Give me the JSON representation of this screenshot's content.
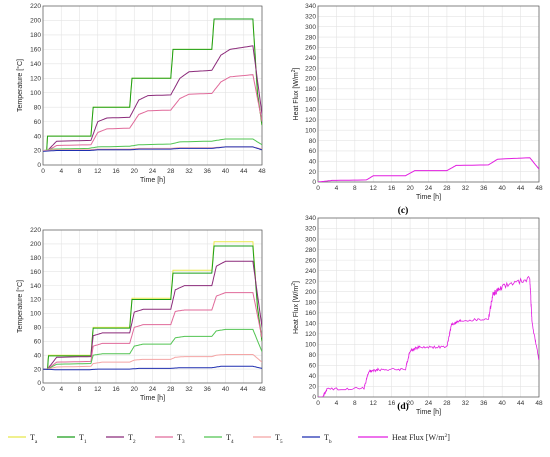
{
  "panel_labels": [
    "(c)",
    "(d)"
  ],
  "chart_data": [
    {
      "type": "line",
      "id": "c-left",
      "xlabel": "Time [h]",
      "ylabel": "Temperature [°C]",
      "xlim": [
        0,
        48
      ],
      "ylim": [
        0,
        220
      ],
      "xticks": [
        0,
        4,
        8,
        12,
        16,
        20,
        24,
        28,
        32,
        36,
        40,
        44,
        48
      ],
      "yticks": [
        0,
        20,
        40,
        60,
        80,
        100,
        120,
        140,
        160,
        180,
        200,
        220
      ],
      "grid": true,
      "series": [
        {
          "name": "Ta",
          "color": "#e8e84a",
          "x": [
            0,
            0.8,
            1,
            10.5,
            11,
            19,
            19.5,
            28,
            28.5,
            37,
            37.5,
            46,
            47,
            48
          ],
          "y": [
            20,
            20,
            40,
            40,
            80,
            80,
            120,
            120,
            160,
            160,
            202,
            202,
            100,
            55
          ]
        },
        {
          "name": "T1",
          "color": "#1a9e1a",
          "x": [
            0,
            0.8,
            1,
            10.5,
            11,
            19,
            19.5,
            28,
            28.5,
            37,
            37.5,
            46,
            47,
            48
          ],
          "y": [
            20,
            20,
            40,
            40,
            80,
            80,
            120,
            120,
            160,
            160,
            202,
            202,
            100,
            55
          ]
        },
        {
          "name": "T2",
          "color": "#8b2a7a",
          "x": [
            0,
            1,
            3,
            10.5,
            12,
            14,
            19,
            21,
            23,
            28,
            30,
            32,
            37,
            39,
            41,
            46,
            48
          ],
          "y": [
            20,
            20,
            33,
            34,
            60,
            65,
            66,
            90,
            96,
            97,
            120,
            129,
            131,
            152,
            160,
            165,
            70
          ]
        },
        {
          "name": "T3",
          "color": "#e06a9a",
          "x": [
            0,
            1,
            3,
            10.5,
            12,
            14,
            19,
            21,
            23,
            28,
            30,
            32,
            37,
            39,
            41,
            46,
            48
          ],
          "y": [
            20,
            20,
            27,
            28,
            45,
            50,
            51,
            70,
            75,
            76,
            92,
            98,
            99,
            115,
            122,
            125,
            60
          ]
        },
        {
          "name": "T4",
          "color": "#52c452",
          "x": [
            0,
            2,
            10,
            12,
            19,
            21,
            28,
            30,
            37,
            40,
            46,
            48
          ],
          "y": [
            20,
            22,
            23,
            25,
            26,
            28,
            29,
            32,
            33,
            36,
            36,
            28
          ]
        },
        {
          "name": "T5",
          "color": "#f4a5a5",
          "x": [
            0,
            2,
            10,
            12,
            19,
            21,
            28,
            30,
            37,
            40,
            46,
            48
          ],
          "y": [
            20,
            21,
            21,
            22,
            22,
            23,
            23,
            24,
            24,
            25,
            25,
            22
          ]
        },
        {
          "name": "Tb",
          "color": "#1f2fb0",
          "x": [
            0,
            3,
            10,
            12,
            19,
            21,
            28,
            30,
            37,
            40,
            46,
            48
          ],
          "y": [
            19,
            20,
            20,
            21,
            21,
            22,
            22,
            23,
            23,
            25,
            25,
            21
          ]
        }
      ]
    },
    {
      "type": "line",
      "id": "c-right",
      "xlabel": "Time [h]",
      "ylabel": "Heat Flux [W/m2]",
      "xlim": [
        0,
        48
      ],
      "ylim": [
        0,
        340
      ],
      "xticks": [
        0,
        4,
        8,
        12,
        16,
        20,
        24,
        28,
        32,
        36,
        40,
        44,
        48
      ],
      "yticks": [
        0,
        20,
        40,
        60,
        80,
        100,
        120,
        140,
        160,
        180,
        200,
        220,
        240,
        260,
        280,
        300,
        320,
        340
      ],
      "grid": true,
      "series": [
        {
          "name": "Heat Flux [W/m2]",
          "color": "#e21ee0",
          "x": [
            0,
            1,
            3,
            10.5,
            12,
            19,
            21,
            28,
            30,
            37,
            39,
            46,
            48
          ],
          "y": [
            0,
            1,
            3,
            4,
            12,
            12,
            22,
            22,
            32,
            33,
            44,
            47,
            25
          ]
        }
      ]
    },
    {
      "type": "line",
      "id": "d-left",
      "xlabel": "Time [h]",
      "ylabel": "Temperature [°C]",
      "xlim": [
        0,
        48
      ],
      "ylim": [
        0,
        220
      ],
      "xticks": [
        0,
        4,
        8,
        12,
        16,
        20,
        24,
        28,
        32,
        36,
        40,
        44,
        48
      ],
      "yticks": [
        0,
        20,
        40,
        60,
        80,
        100,
        120,
        140,
        160,
        180,
        200,
        220
      ],
      "grid": true,
      "series": [
        {
          "name": "Ta",
          "color": "#e8e84a",
          "x": [
            0,
            1,
            1.2,
            10.5,
            11,
            19,
            19.5,
            28,
            28.5,
            37,
            37.5,
            46,
            47,
            48
          ],
          "y": [
            20,
            20,
            40,
            40,
            80,
            80,
            122,
            122,
            162,
            162,
            203,
            203,
            110,
            60
          ]
        },
        {
          "name": "T1",
          "color": "#1a9e1a",
          "x": [
            0,
            1,
            1.2,
            10.5,
            11,
            19,
            19.5,
            28,
            28.5,
            37,
            37.5,
            46,
            47,
            48
          ],
          "y": [
            20,
            20,
            39,
            39,
            79,
            79,
            120,
            120,
            158,
            158,
            197,
            197,
            110,
            60
          ]
        },
        {
          "name": "T2",
          "color": "#8b2a7a",
          "x": [
            0,
            1,
            3,
            10.5,
            11,
            13,
            19,
            20,
            22,
            28,
            29,
            31,
            37,
            38,
            40,
            46,
            48
          ],
          "y": [
            20,
            20,
            37,
            38,
            68,
            72,
            72,
            102,
            106,
            106,
            134,
            140,
            140,
            168,
            175,
            175,
            80
          ]
        },
        {
          "name": "T3",
          "color": "#e06a9a",
          "x": [
            0,
            1,
            3,
            10.5,
            11,
            13,
            19,
            20,
            22,
            28,
            29,
            31,
            37,
            38,
            40,
            46,
            48
          ],
          "y": [
            20,
            20,
            30,
            31,
            53,
            57,
            57,
            80,
            84,
            84,
            103,
            105,
            105,
            125,
            130,
            130,
            65
          ]
        },
        {
          "name": "T4",
          "color": "#52c452",
          "x": [
            0,
            1,
            3,
            10.5,
            11,
            13,
            19,
            20,
            22,
            28,
            29,
            31,
            37,
            38,
            40,
            46,
            48
          ],
          "y": [
            20,
            20,
            27,
            28,
            40,
            42,
            42,
            53,
            56,
            56,
            65,
            67,
            67,
            75,
            77,
            77,
            45
          ]
        },
        {
          "name": "T5",
          "color": "#f4a5a5",
          "x": [
            0,
            1,
            3,
            10.5,
            11,
            13,
            19,
            20,
            22,
            28,
            29,
            31,
            37,
            38,
            40,
            46,
            48
          ],
          "y": [
            20,
            20,
            23,
            24,
            28,
            30,
            30,
            33,
            34,
            34,
            37,
            38,
            38,
            40,
            41,
            41,
            30
          ]
        },
        {
          "name": "Tb",
          "color": "#1f2fb0",
          "x": [
            0,
            3,
            10,
            12,
            19,
            21,
            28,
            30,
            37,
            39,
            46,
            48
          ],
          "y": [
            20,
            19,
            19,
            20,
            20,
            21,
            21,
            22,
            22,
            24,
            24,
            21
          ]
        }
      ]
    },
    {
      "type": "line",
      "id": "d-right",
      "xlabel": "Time [h]",
      "ylabel": "Heat Flux [W/m2]",
      "xlim": [
        0,
        48
      ],
      "ylim": [
        0,
        340
      ],
      "xticks": [
        0,
        4,
        8,
        12,
        16,
        20,
        24,
        28,
        32,
        36,
        40,
        44,
        48
      ],
      "yticks": [
        0,
        20,
        40,
        60,
        80,
        100,
        120,
        140,
        160,
        180,
        200,
        220,
        240,
        260,
        280,
        300,
        320,
        340
      ],
      "grid": true,
      "series": [
        {
          "name": "Heat Flux [W/m2]",
          "color": "#e21ee0",
          "x": [
            0,
            1,
            2,
            10,
            11,
            13,
            19,
            20,
            22,
            28,
            29,
            31,
            37,
            38,
            40,
            46,
            46.5,
            48
          ],
          "y": [
            0,
            0,
            15,
            17,
            48,
            52,
            53,
            88,
            95,
            95,
            138,
            145,
            148,
            195,
            210,
            225,
            140,
            70
          ]
        }
      ]
    }
  ],
  "legend": {
    "entries": [
      {
        "label": "Ta",
        "base": "T",
        "sub": "a",
        "color": "#e8e84a"
      },
      {
        "label": "T1",
        "base": "T",
        "sub": "1",
        "color": "#1a9e1a"
      },
      {
        "label": "T2",
        "base": "T",
        "sub": "2",
        "color": "#8b2a7a"
      },
      {
        "label": "T3",
        "base": "T",
        "sub": "3",
        "color": "#e06a9a"
      },
      {
        "label": "T4",
        "base": "T",
        "sub": "4",
        "color": "#52c452"
      },
      {
        "label": "T5",
        "base": "T",
        "sub": "5",
        "color": "#f4a5a5"
      },
      {
        "label": "Tb",
        "base": "T",
        "sub": "b",
        "color": "#1f2fb0"
      }
    ],
    "heat_flux": {
      "label": "Heat Flux [W/m2]",
      "base": "Heat Flux [W/m",
      "sup": "2",
      "tail": "]",
      "color": "#e21ee0"
    }
  }
}
